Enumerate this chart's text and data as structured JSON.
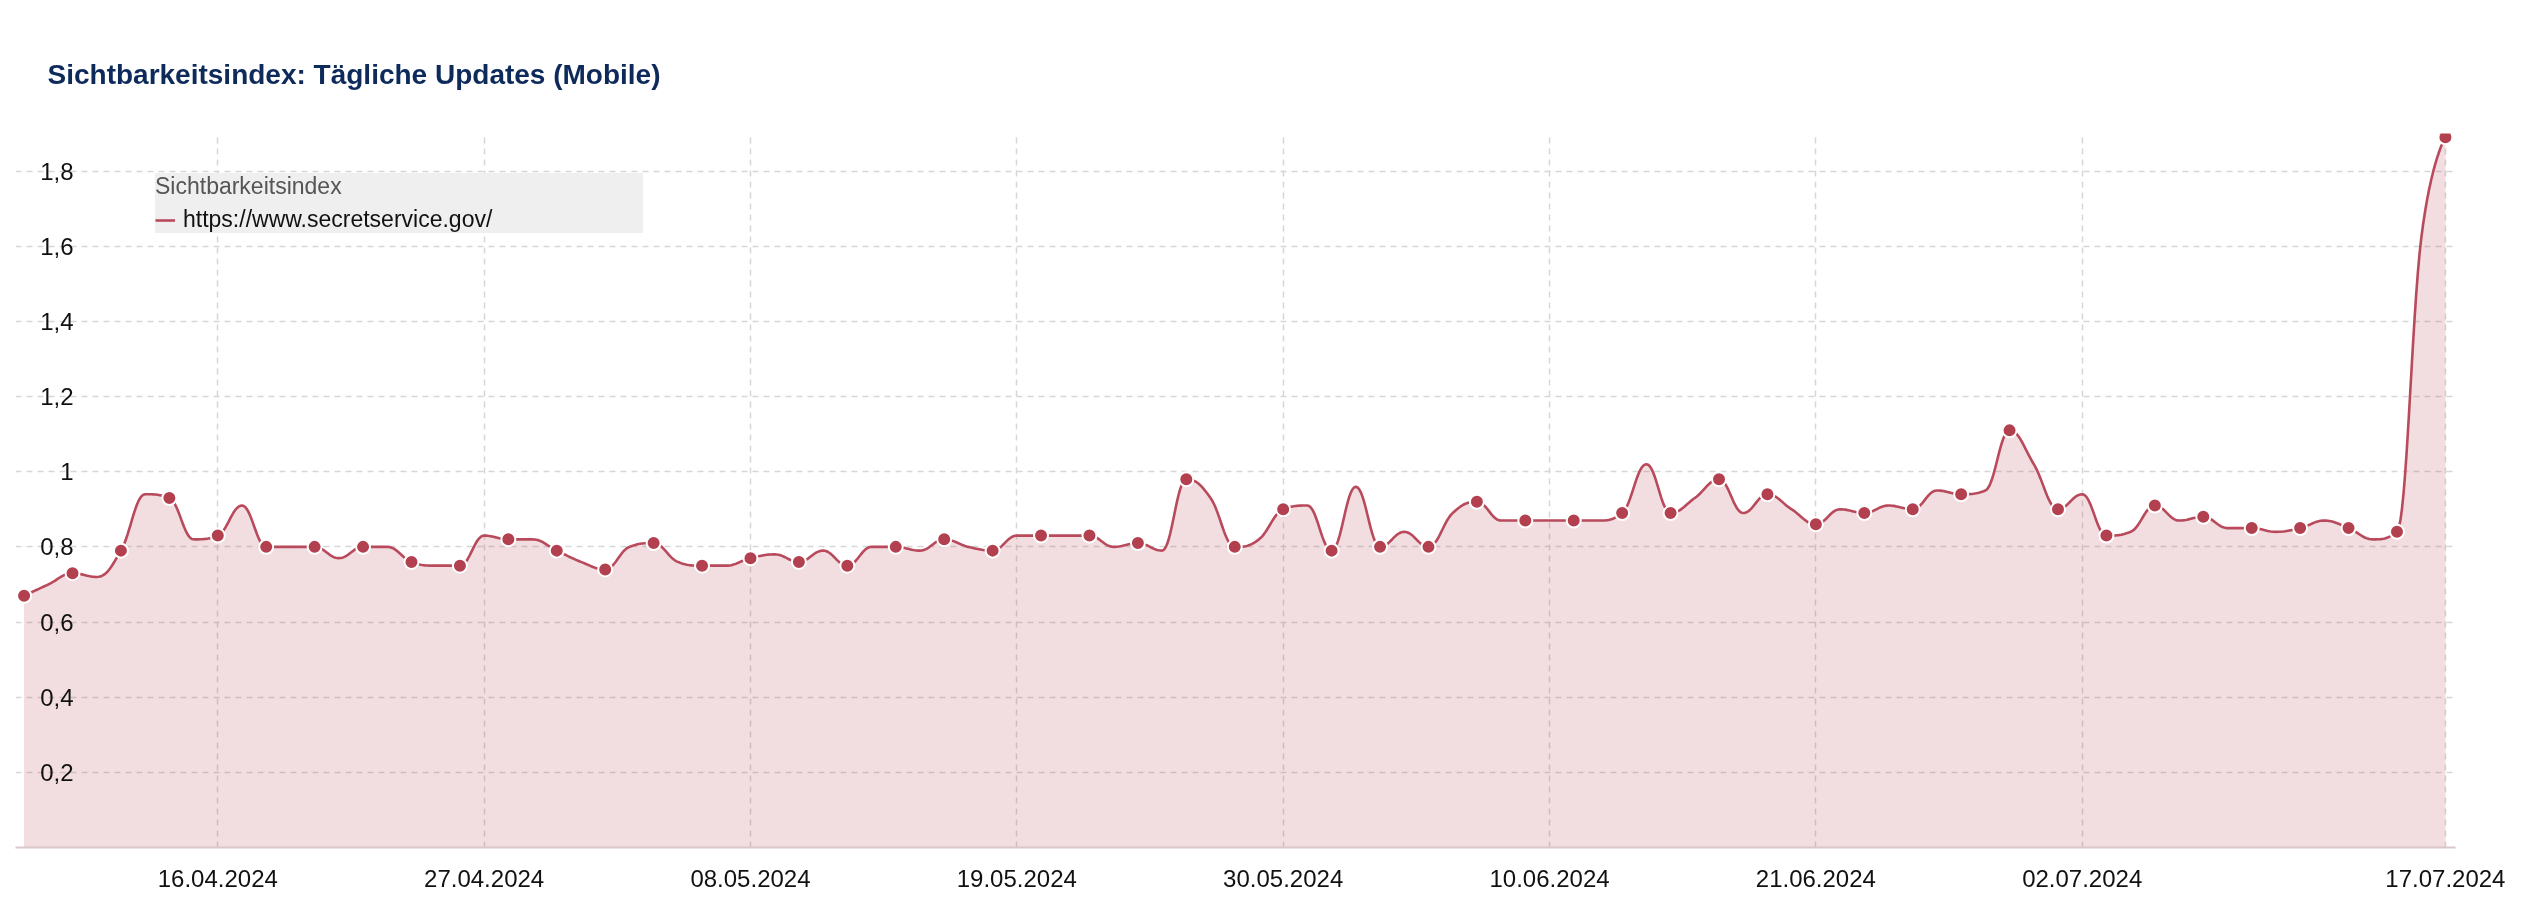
{
  "chart_data": {
    "type": "area",
    "title": "Sichtbarkeitsindex: Tägliche Updates (Mobile)",
    "legend_title": "Sichtbarkeitsindex",
    "legend": "top left",
    "grid": true,
    "xlim": [
      "2024-04-07T15:30",
      "2024-07-17T10:00"
    ],
    "ylim": [
      0,
      1.9
    ],
    "xticks": [
      {
        "value": "2024-04-16",
        "label": "16.04.2024"
      },
      {
        "value": "2024-04-27",
        "label": "27.04.2024"
      },
      {
        "value": "2024-05-08",
        "label": "08.05.2024"
      },
      {
        "value": "2024-05-19",
        "label": "19.05.2024"
      },
      {
        "value": "2024-05-30",
        "label": "30.05.2024"
      },
      {
        "value": "2024-06-10",
        "label": "10.06.2024"
      },
      {
        "value": "2024-06-21",
        "label": "21.06.2024"
      },
      {
        "value": "2024-07-02",
        "label": "02.07.2024"
      },
      {
        "value": "2024-07-17",
        "label": "17.07.2024"
      }
    ],
    "yticks": [
      {
        "value": 0.2,
        "label": "0,2"
      },
      {
        "value": 0.4,
        "label": "0,4"
      },
      {
        "value": 0.6,
        "label": "0,6"
      },
      {
        "value": 0.8,
        "label": "0,8"
      },
      1,
      {
        "value": 1.2,
        "label": "1,2"
      },
      {
        "value": 1.4,
        "label": "1,4"
      },
      {
        "value": 1.6,
        "label": "1,6"
      },
      {
        "value": 1.8,
        "label": "1,8"
      }
    ],
    "x": [
      "2024-04-08",
      "2024-04-09",
      "2024-04-10",
      "2024-04-11",
      "2024-04-12",
      "2024-04-13",
      "2024-04-14",
      "2024-04-15",
      "2024-04-16",
      "2024-04-17",
      "2024-04-18",
      "2024-04-19",
      "2024-04-20",
      "2024-04-21",
      "2024-04-22",
      "2024-04-23",
      "2024-04-24",
      "2024-04-25",
      "2024-04-26",
      "2024-04-27",
      "2024-04-28",
      "2024-04-29",
      "2024-04-30",
      "2024-05-01",
      "2024-05-02",
      "2024-05-03",
      "2024-05-04",
      "2024-05-05",
      "2024-05-06",
      "2024-05-07",
      "2024-05-08",
      "2024-05-09",
      "2024-05-10",
      "2024-05-11",
      "2024-05-12",
      "2024-05-13",
      "2024-05-14",
      "2024-05-15",
      "2024-05-16",
      "2024-05-17",
      "2024-05-18",
      "2024-05-19",
      "2024-05-20",
      "2024-05-21",
      "2024-05-22",
      "2024-05-23",
      "2024-05-24",
      "2024-05-25",
      "2024-05-26",
      "2024-05-27",
      "2024-05-28",
      "2024-05-29",
      "2024-05-30",
      "2024-05-31",
      "2024-06-01",
      "2024-06-02",
      "2024-06-03",
      "2024-06-04",
      "2024-06-05",
      "2024-06-06",
      "2024-06-07",
      "2024-06-08",
      "2024-06-09",
      "2024-06-10",
      "2024-06-11",
      "2024-06-12",
      "2024-06-13",
      "2024-06-14",
      "2024-06-15",
      "2024-06-16",
      "2024-06-17",
      "2024-06-18",
      "2024-06-19",
      "2024-06-20",
      "2024-06-21",
      "2024-06-22",
      "2024-06-23",
      "2024-06-24",
      "2024-06-25",
      "2024-06-26",
      "2024-06-27",
      "2024-06-28",
      "2024-06-29",
      "2024-06-30",
      "2024-07-01",
      "2024-07-02",
      "2024-07-03",
      "2024-07-04",
      "2024-07-05",
      "2024-07-06",
      "2024-07-07",
      "2024-07-08",
      "2024-07-09",
      "2024-07-10",
      "2024-07-11",
      "2024-07-12",
      "2024-07-13",
      "2024-07-14",
      "2024-07-15",
      "2024-07-16",
      "2024-07-17"
    ],
    "series": [
      {
        "name": "https://www.secretservice.gov/",
        "color": "#b84a5c",
        "values": [
          0.67,
          0.7,
          0.73,
          0.72,
          0.79,
          0.94,
          0.93,
          0.82,
          0.83,
          0.91,
          0.8,
          0.8,
          0.8,
          0.77,
          0.8,
          0.8,
          0.76,
          0.75,
          0.75,
          0.83,
          0.82,
          0.82,
          0.79,
          0.76,
          0.74,
          0.8,
          0.81,
          0.76,
          0.75,
          0.75,
          0.77,
          0.78,
          0.76,
          0.79,
          0.75,
          0.8,
          0.8,
          0.79,
          0.82,
          0.8,
          0.79,
          0.83,
          0.83,
          0.83,
          0.83,
          0.8,
          0.81,
          0.79,
          0.98,
          0.93,
          0.8,
          0.82,
          0.9,
          0.91,
          0.79,
          0.96,
          0.8,
          0.84,
          0.8,
          0.89,
          0.92,
          0.87,
          0.87,
          0.87,
          0.87,
          0.87,
          0.89,
          1.02,
          0.89,
          0.93,
          0.98,
          0.89,
          0.94,
          0.9,
          0.86,
          0.9,
          0.89,
          0.91,
          0.9,
          0.95,
          0.94,
          0.95,
          1.11,
          1.02,
          0.9,
          0.94,
          0.83,
          0.84,
          0.91,
          0.87,
          0.88,
          0.85,
          0.85,
          0.84,
          0.85,
          0.87,
          0.85,
          0.82,
          0.84,
          1.62,
          1.89
        ]
      },
      {
        "type": "scatter",
        "marker": "circle",
        "color": "#b2404f",
        "x": [
          "2024-04-08",
          "2024-04-10",
          "2024-04-12",
          "2024-04-14",
          "2024-04-16",
          "2024-04-18",
          "2024-04-20",
          "2024-04-22",
          "2024-04-24",
          "2024-04-26",
          "2024-04-28",
          "2024-04-30",
          "2024-05-02",
          "2024-05-04",
          "2024-05-06",
          "2024-05-08",
          "2024-05-10",
          "2024-05-12",
          "2024-05-14",
          "2024-05-16",
          "2024-05-18",
          "2024-05-20",
          "2024-05-22",
          "2024-05-24",
          "2024-05-26",
          "2024-05-28",
          "2024-05-30",
          "2024-06-01",
          "2024-06-03",
          "2024-06-05",
          "2024-06-07",
          "2024-06-09",
          "2024-06-11",
          "2024-06-13",
          "2024-06-15",
          "2024-06-17",
          "2024-06-19",
          "2024-06-21",
          "2024-06-23",
          "2024-06-25",
          "2024-06-27",
          "2024-06-29",
          "2024-07-01",
          "2024-07-03",
          "2024-07-05",
          "2024-07-07",
          "2024-07-09",
          "2024-07-11",
          "2024-07-13",
          "2024-07-15",
          "2024-07-17"
        ],
        "values": [
          0.67,
          0.73,
          0.79,
          0.93,
          0.83,
          0.8,
          0.8,
          0.8,
          0.76,
          0.75,
          0.82,
          0.79,
          0.74,
          0.81,
          0.75,
          0.77,
          0.76,
          0.75,
          0.8,
          0.82,
          0.79,
          0.83,
          0.83,
          0.81,
          0.98,
          0.8,
          0.9,
          0.79,
          0.8,
          0.8,
          0.92,
          0.87,
          0.87,
          0.89,
          0.89,
          0.98,
          0.94,
          0.86,
          0.89,
          0.9,
          0.94,
          1.11,
          0.9,
          0.83,
          0.91,
          0.88,
          0.85,
          0.85,
          0.85,
          0.84,
          1.89
        ]
      }
    ]
  }
}
